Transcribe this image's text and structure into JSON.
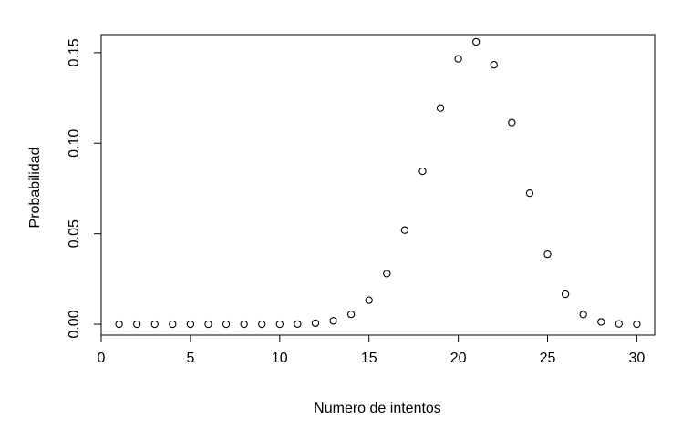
{
  "chart_data": {
    "type": "scatter",
    "title": "",
    "xlabel": "Numero de intentos",
    "ylabel": "Probabilidad",
    "xlim": [
      0.0,
      31.0
    ],
    "ylim": [
      -0.006,
      0.16
    ],
    "xticks": [
      0,
      5,
      10,
      15,
      20,
      25,
      30
    ],
    "yticks": [
      0.0,
      0.05,
      0.1,
      0.15
    ],
    "xtick_labels": [
      "0",
      "5",
      "10",
      "15",
      "20",
      "25",
      "30"
    ],
    "ytick_labels": [
      "0.00",
      "0.05",
      "0.10",
      "0.15"
    ],
    "grid": false,
    "legend": "none",
    "marker": "open-circle",
    "series": [
      {
        "x": [
          1,
          2,
          3,
          4,
          5,
          6,
          7,
          8,
          9,
          10,
          11,
          12,
          13,
          14,
          15,
          16,
          17,
          18,
          19,
          20,
          21,
          22,
          23,
          24,
          25,
          26,
          27,
          28,
          29,
          30
        ],
        "y": [
          0.0,
          0.0,
          0.0,
          0.0,
          0.0,
          0.0,
          0.0,
          0.0,
          0.0,
          0.0,
          0.0001,
          0.0006,
          0.0019,
          0.0055,
          0.0133,
          0.028,
          0.052,
          0.0845,
          0.1194,
          0.1466,
          0.156,
          0.1433,
          0.1114,
          0.0724,
          0.0387,
          0.0166,
          0.0054,
          0.0013,
          0.0002,
          0.0
        ]
      }
    ]
  }
}
